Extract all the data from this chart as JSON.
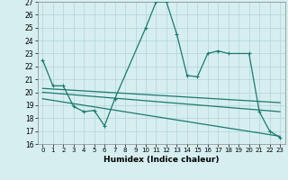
{
  "title": "",
  "xlabel": "Humidex (Indice chaleur)",
  "xlim": [
    -0.5,
    23.5
  ],
  "ylim": [
    16,
    27
  ],
  "yticks": [
    16,
    17,
    18,
    19,
    20,
    21,
    22,
    23,
    24,
    25,
    26,
    27
  ],
  "xticks": [
    0,
    1,
    2,
    3,
    4,
    5,
    6,
    7,
    8,
    9,
    10,
    11,
    12,
    13,
    14,
    15,
    16,
    17,
    18,
    19,
    20,
    21,
    22,
    23
  ],
  "bg_color": "#d6eef0",
  "grid_color": "#b8d8dc",
  "line_color": "#1a7a6e",
  "series1_x": [
    0,
    1,
    2,
    3,
    4,
    5,
    6,
    7,
    10,
    11,
    12,
    13,
    14,
    15,
    16,
    17,
    18,
    20,
    21,
    22,
    23
  ],
  "series1_y": [
    22.5,
    20.5,
    20.5,
    18.9,
    18.5,
    18.6,
    17.4,
    19.5,
    25.0,
    27.0,
    27.0,
    24.5,
    21.3,
    21.2,
    23.0,
    23.2,
    23.0,
    23.0,
    18.5,
    17.0,
    16.5
  ],
  "series2_x": [
    0,
    23
  ],
  "series2_y": [
    20.3,
    19.2
  ],
  "series3_x": [
    0,
    23
  ],
  "series3_y": [
    20.0,
    18.5
  ],
  "series4_x": [
    0,
    23
  ],
  "series4_y": [
    19.5,
    16.6
  ]
}
